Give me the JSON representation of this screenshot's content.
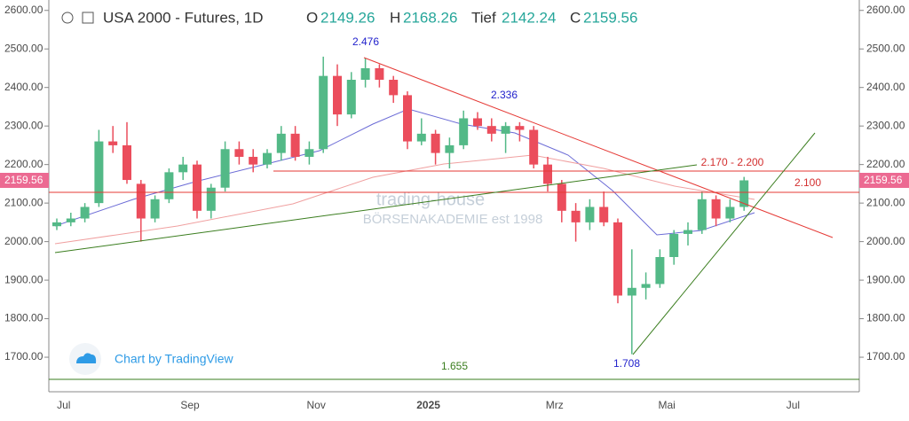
{
  "header": {
    "title": "USA 2000 - Futures, 1D",
    "open_label": "O",
    "open": 2149.26,
    "high_label": "H",
    "high": 2168.26,
    "low_label": "Tief",
    "low": 2142.24,
    "close_label": "C",
    "close": 2159.56
  },
  "branding": {
    "watermark": "trading-house",
    "watermark_sub": "BÖRSENAKADEMIE est 1998",
    "credit": "Chart by TradingView"
  },
  "chart_data": {
    "type": "candlestick",
    "categories": [
      null,
      "Jul",
      null,
      null,
      null,
      null,
      null,
      null,
      null,
      null,
      "Sep",
      null,
      null,
      null,
      null,
      null,
      null,
      null,
      null,
      "Nov",
      null,
      null,
      null,
      null,
      null,
      null,
      null,
      "2025",
      null,
      null,
      null,
      null,
      null,
      null,
      null,
      null,
      "Mrz",
      null,
      null,
      null,
      null,
      null,
      null,
      null,
      "Mai",
      null,
      null,
      null,
      null,
      null,
      null,
      null,
      null,
      "Jul",
      null,
      null,
      null
    ],
    "open": [
      2040,
      2050,
      2060,
      2100,
      2260,
      2250,
      2150,
      2060,
      2110,
      2180,
      2200,
      2080,
      2140,
      2240,
      2220,
      2200,
      2230,
      2280,
      2220,
      2240,
      2430,
      2330,
      2420,
      2450,
      2420,
      2380,
      2260,
      2280,
      2230,
      2250,
      2320,
      2300,
      2280,
      2300,
      2290,
      2200,
      2150,
      2080,
      2050,
      2090,
      2050,
      1860,
      1880,
      1890,
      1960,
      2020,
      2030,
      2110,
      2060,
      2090,
      null,
      null,
      null,
      null,
      null,
      null,
      null
    ],
    "high": [
      2060,
      2075,
      2100,
      2290,
      2300,
      2310,
      2160,
      2120,
      2190,
      2220,
      2210,
      2150,
      2260,
      2260,
      2240,
      2240,
      2300,
      2300,
      2260,
      2480,
      2460,
      2440,
      2476,
      2460,
      2430,
      2390,
      2320,
      2290,
      2270,
      2340,
      2336,
      2320,
      2310,
      2310,
      2300,
      2220,
      2160,
      2100,
      2110,
      2130,
      2060,
      1980,
      1920,
      1980,
      2030,
      2050,
      2130,
      2120,
      2110,
      2168,
      null,
      null,
      null,
      null,
      null,
      null,
      null
    ],
    "low": [
      2030,
      2040,
      2050,
      2090,
      2230,
      2150,
      2000,
      2050,
      2100,
      2160,
      2060,
      2060,
      2130,
      2200,
      2180,
      2190,
      2210,
      2210,
      2200,
      2230,
      2300,
      2320,
      2400,
      2400,
      2360,
      2240,
      2250,
      2200,
      2190,
      2240,
      2290,
      2260,
      2230,
      2260,
      2190,
      2130,
      2050,
      2000,
      2030,
      2040,
      1840,
      1708,
      1850,
      1880,
      1940,
      1990,
      2020,
      2040,
      2050,
      2080,
      null,
      null,
      null,
      null,
      null,
      null,
      null
    ],
    "close": [
      2050,
      2060,
      2090,
      2260,
      2250,
      2160,
      2060,
      2110,
      2180,
      2200,
      2080,
      2140,
      2240,
      2220,
      2200,
      2230,
      2280,
      2220,
      2240,
      2430,
      2330,
      2420,
      2450,
      2420,
      2380,
      2260,
      2280,
      2230,
      2250,
      2320,
      2300,
      2280,
      2300,
      2290,
      2200,
      2150,
      2080,
      2050,
      2090,
      2050,
      1860,
      1880,
      1890,
      1960,
      2020,
      2030,
      2110,
      2060,
      2090,
      2159,
      null,
      null,
      null,
      null,
      null,
      null,
      null
    ],
    "up_color": "#53b987",
    "down_color": "#eb4d5c",
    "ylim": [
      1615,
      2627
    ],
    "yticks": [
      {
        "value": 1700,
        "label": "1700.00"
      },
      {
        "value": 1800,
        "label": "1800.00"
      },
      {
        "value": 1900,
        "label": "1900.00"
      },
      {
        "value": 2000,
        "label": "2000.00"
      },
      {
        "value": 2100,
        "label": "2100.00"
      },
      {
        "value": 2200,
        "label": "2200.00"
      },
      {
        "value": 2300,
        "label": "2300.00"
      },
      {
        "value": 2400,
        "label": "2400.00"
      },
      {
        "value": 2500,
        "label": "2500.00"
      },
      {
        "value": 2600,
        "label": "2600.00"
      }
    ],
    "annotations": [
      "2.476",
      "2.336",
      "2.170 - 2.200",
      "2.100",
      "1.708",
      "1.655"
    ]
  }
}
